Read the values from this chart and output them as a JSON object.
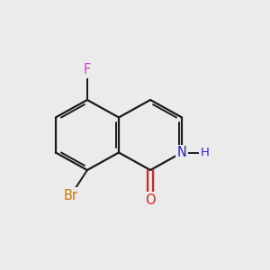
{
  "background_color": "#ebebeb",
  "bond_color": "#1a1a1a",
  "atom_colors": {
    "F": "#cc44cc",
    "Br": "#cc7700",
    "N": "#2222cc",
    "O": "#dd2222"
  },
  "bond_lw": 1.6,
  "aromatic_lw": 1.4,
  "font_size": 10.5,
  "figsize": [
    3.0,
    3.0
  ],
  "dpi": 100
}
